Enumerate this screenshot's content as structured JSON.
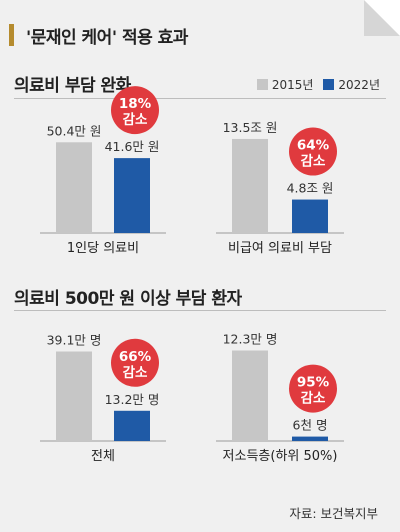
{
  "title": "'문재인 케어' 적용 효과",
  "source": "자료: 보건복지부",
  "colors": {
    "y2015": "#c6c6c6",
    "y2022": "#1f5aa6",
    "badge": "#e03a3e",
    "accent": "#b58b2e"
  },
  "chart_data": [
    {
      "type": "bar",
      "section_title": "의료비 부담 완화",
      "legend": [
        "2015년",
        "2022년"
      ],
      "panels": [
        {
          "category": "1인당 의료비",
          "series": [
            {
              "name": "2015년",
              "value": 50.4,
              "label": "50.4만 원"
            },
            {
              "name": "2022년",
              "value": 41.6,
              "label": "41.6만 원"
            }
          ],
          "badge": {
            "pct": "18%",
            "text": "감소"
          },
          "ylim": [
            0,
            60
          ]
        },
        {
          "category": "비급여 의료비 부담",
          "series": [
            {
              "name": "2015년",
              "value": 13.5,
              "label": "13.5조 원"
            },
            {
              "name": "2022년",
              "value": 4.8,
              "label": "4.8조 원"
            }
          ],
          "badge": {
            "pct": "64%",
            "text": "감소"
          },
          "ylim": [
            0,
            15.5
          ]
        }
      ]
    },
    {
      "type": "bar",
      "section_title": "의료비 500만 원 이상 부담 환자",
      "panels": [
        {
          "category": "전체",
          "series": [
            {
              "name": "2015년",
              "value": 39.1,
              "label": "39.1만 명"
            },
            {
              "name": "2022년",
              "value": 13.2,
              "label": "13.2만 명"
            }
          ],
          "badge": {
            "pct": "66%",
            "text": "감소"
          },
          "ylim": [
            0,
            45
          ]
        },
        {
          "category": "저소득층(하위 50%)",
          "series": [
            {
              "name": "2015년",
              "value": 12.3,
              "label": "12.3만 명"
            },
            {
              "name": "2022년",
              "value": 0.6,
              "label": "6천 명"
            }
          ],
          "badge": {
            "pct": "95%",
            "text": "감소"
          },
          "ylim": [
            0,
            14
          ]
        }
      ]
    }
  ]
}
